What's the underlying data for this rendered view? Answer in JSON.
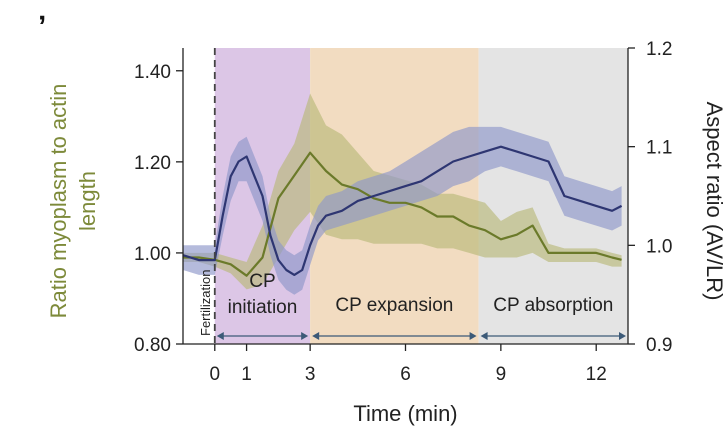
{
  "panel_letter": "ʼ",
  "colors": {
    "ratio_line": "#6b7a2a",
    "ratio_band": "#b9b97a",
    "aspect_line": "#2e3672",
    "aspect_band": "#8d97c9",
    "phase_initiation": "#dcc6e6",
    "phase_expansion": "#f2dcc1",
    "phase_absorption": "#e4e4e4",
    "axis_title_left": "#7d8a3a",
    "axis": "#222222",
    "arrow": "#3c5a78"
  },
  "chart_data": {
    "type": "line",
    "xlabel": "Time (min)",
    "ylabel_left": "Ratio myoplasm to actin length",
    "ylabel_right": "Aspect ratio (AV/LR)",
    "xlim": [
      -1,
      13
    ],
    "ylim_left": [
      0.8,
      1.45
    ],
    "ylim_right": [
      0.9,
      1.2
    ],
    "x_ticks": [
      0,
      1,
      3,
      6,
      9,
      12
    ],
    "x_tick_labels": [
      "0",
      "1",
      "3",
      "6",
      "9",
      "12"
    ],
    "y_left_ticks": [
      0.8,
      1.0,
      1.2,
      1.4
    ],
    "y_left_tick_labels": [
      "0.80",
      "1.00",
      "1.20",
      "1.40"
    ],
    "y_right_ticks": [
      0.9,
      1.0,
      1.1,
      1.2
    ],
    "y_right_tick_labels": [
      "0.9",
      "1.0",
      "1.1",
      "1.2"
    ],
    "fertilization": {
      "x": 0,
      "label": "Fertilization"
    },
    "phases": [
      {
        "name": "CP initiation",
        "label_lines": [
          "CP",
          "initiation"
        ],
        "x_start": 0,
        "x_end": 3,
        "color_key": "phase_initiation"
      },
      {
        "name": "CP expansion",
        "label_lines": [
          "CP expansion"
        ],
        "x_start": 3,
        "x_end": 8.3,
        "color_key": "phase_expansion"
      },
      {
        "name": "CP absorption",
        "label_lines": [
          "CP absorption"
        ],
        "x_start": 8.3,
        "x_end": 13,
        "color_key": "phase_absorption"
      }
    ],
    "series": [
      {
        "name": "Ratio myoplasm to actin length",
        "axis": "left",
        "color_key": "ratio_line",
        "band_color_key": "ratio_band",
        "x": [
          -1,
          -0.5,
          0,
          0.5,
          1,
          1.5,
          2,
          2.5,
          3,
          3.5,
          4,
          4.5,
          5,
          5.5,
          6,
          6.5,
          7,
          7.5,
          8,
          8.5,
          9,
          9.5,
          10,
          10.5,
          11,
          11.5,
          12,
          12.5,
          12.8
        ],
        "mean": [
          0.99,
          0.99,
          0.985,
          0.975,
          0.95,
          0.99,
          1.12,
          1.17,
          1.22,
          1.18,
          1.15,
          1.14,
          1.12,
          1.11,
          1.11,
          1.1,
          1.08,
          1.08,
          1.06,
          1.05,
          1.03,
          1.04,
          1.06,
          1.0,
          1.0,
          1.0,
          1.0,
          0.99,
          0.985
        ],
        "upper": [
          1.0,
          1.0,
          1.0,
          0.99,
          0.98,
          1.06,
          1.18,
          1.24,
          1.35,
          1.28,
          1.26,
          1.22,
          1.18,
          1.17,
          1.16,
          1.15,
          1.13,
          1.13,
          1.12,
          1.11,
          1.07,
          1.09,
          1.1,
          1.02,
          1.01,
          1.01,
          1.01,
          1.0,
          0.995
        ],
        "lower": [
          0.98,
          0.98,
          0.97,
          0.955,
          0.92,
          0.93,
          0.99,
          1.05,
          1.09,
          1.04,
          1.03,
          1.03,
          1.02,
          1.02,
          1.02,
          1.02,
          1.01,
          1.01,
          1.0,
          0.99,
          0.99,
          0.99,
          1.0,
          0.98,
          0.98,
          0.98,
          0.98,
          0.97,
          0.97
        ]
      },
      {
        "name": "Aspect ratio (AV/LR)",
        "axis": "right",
        "color_key": "aspect_line",
        "band_color_key": "aspect_band",
        "x": [
          -1,
          -0.5,
          0,
          0.25,
          0.5,
          0.75,
          1,
          1.25,
          1.5,
          1.75,
          2,
          2.25,
          2.5,
          2.75,
          3,
          3.25,
          3.5,
          4,
          4.5,
          5,
          5.5,
          6,
          6.5,
          7,
          7.5,
          8,
          8.5,
          9,
          9.5,
          10,
          10.5,
          11,
          11.5,
          12,
          12.5,
          12.8
        ],
        "mean": [
          0.99,
          0.985,
          0.985,
          1.03,
          1.07,
          1.085,
          1.09,
          1.07,
          1.05,
          1.01,
          0.985,
          0.975,
          0.97,
          0.975,
          1.0,
          1.02,
          1.03,
          1.035,
          1.045,
          1.05,
          1.055,
          1.06,
          1.065,
          1.075,
          1.085,
          1.09,
          1.095,
          1.1,
          1.095,
          1.09,
          1.085,
          1.05,
          1.045,
          1.04,
          1.035,
          1.04
        ],
        "upper": [
          1.0,
          1.0,
          1.0,
          1.05,
          1.09,
          1.105,
          1.11,
          1.09,
          1.07,
          1.03,
          1.005,
          0.995,
          0.99,
          0.995,
          1.02,
          1.04,
          1.05,
          1.055,
          1.065,
          1.07,
          1.075,
          1.085,
          1.095,
          1.105,
          1.115,
          1.12,
          1.12,
          1.12,
          1.115,
          1.11,
          1.105,
          1.07,
          1.065,
          1.06,
          1.055,
          1.06
        ],
        "lower": [
          0.975,
          0.97,
          0.97,
          1.01,
          1.045,
          1.065,
          1.065,
          1.045,
          1.025,
          0.99,
          0.965,
          0.955,
          0.95,
          0.955,
          0.98,
          1.005,
          1.015,
          1.02,
          1.025,
          1.03,
          1.035,
          1.04,
          1.045,
          1.05,
          1.06,
          1.065,
          1.075,
          1.08,
          1.075,
          1.07,
          1.065,
          1.03,
          1.025,
          1.02,
          1.015,
          1.02
        ]
      }
    ]
  }
}
